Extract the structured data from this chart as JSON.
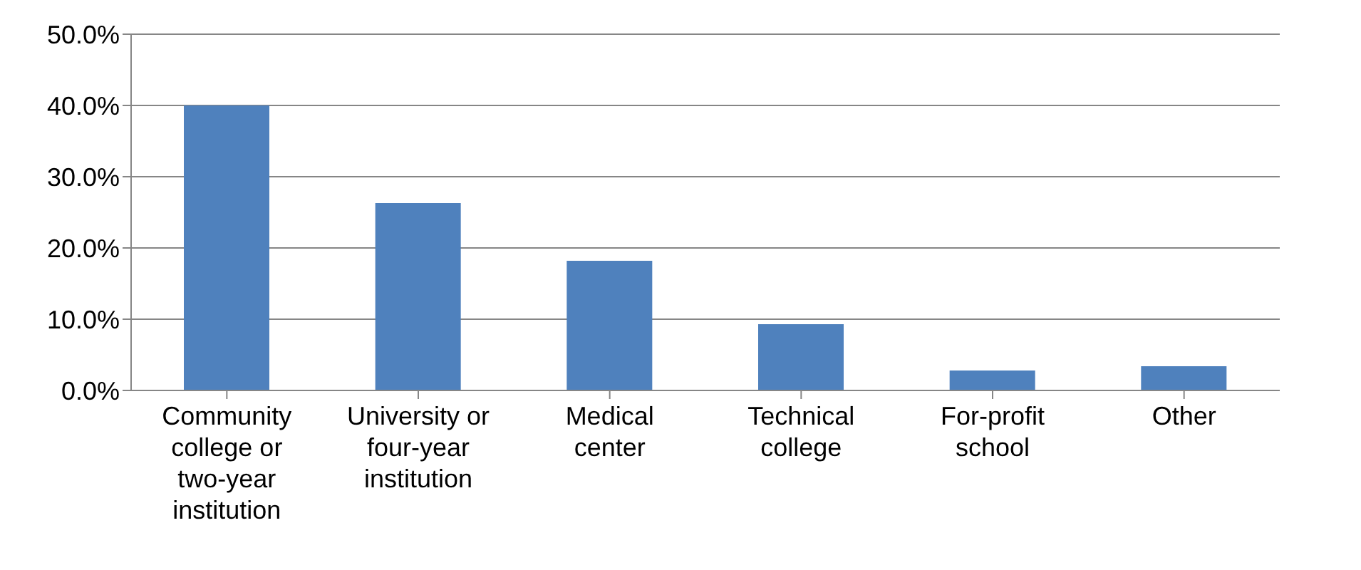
{
  "chart_data": {
    "type": "bar",
    "categories": [
      "Community college or two-year institution",
      "University or four-year institution",
      "Medical center",
      "Technical college",
      "For-profit school",
      "Other"
    ],
    "values": [
      40.0,
      26.3,
      18.2,
      9.3,
      2.8,
      3.4
    ],
    "color": "#4f81bd",
    "ylim": [
      0,
      50
    ],
    "yticks": [
      {
        "value": 0,
        "label": "0.0%"
      },
      {
        "value": 10,
        "label": "10.0%"
      },
      {
        "value": 20,
        "label": "20.0%"
      },
      {
        "value": 30,
        "label": "30.0%"
      },
      {
        "value": 40,
        "label": "40.0%"
      },
      {
        "value": 50,
        "label": "50.0%"
      }
    ],
    "grid": "y",
    "legend": false
  }
}
